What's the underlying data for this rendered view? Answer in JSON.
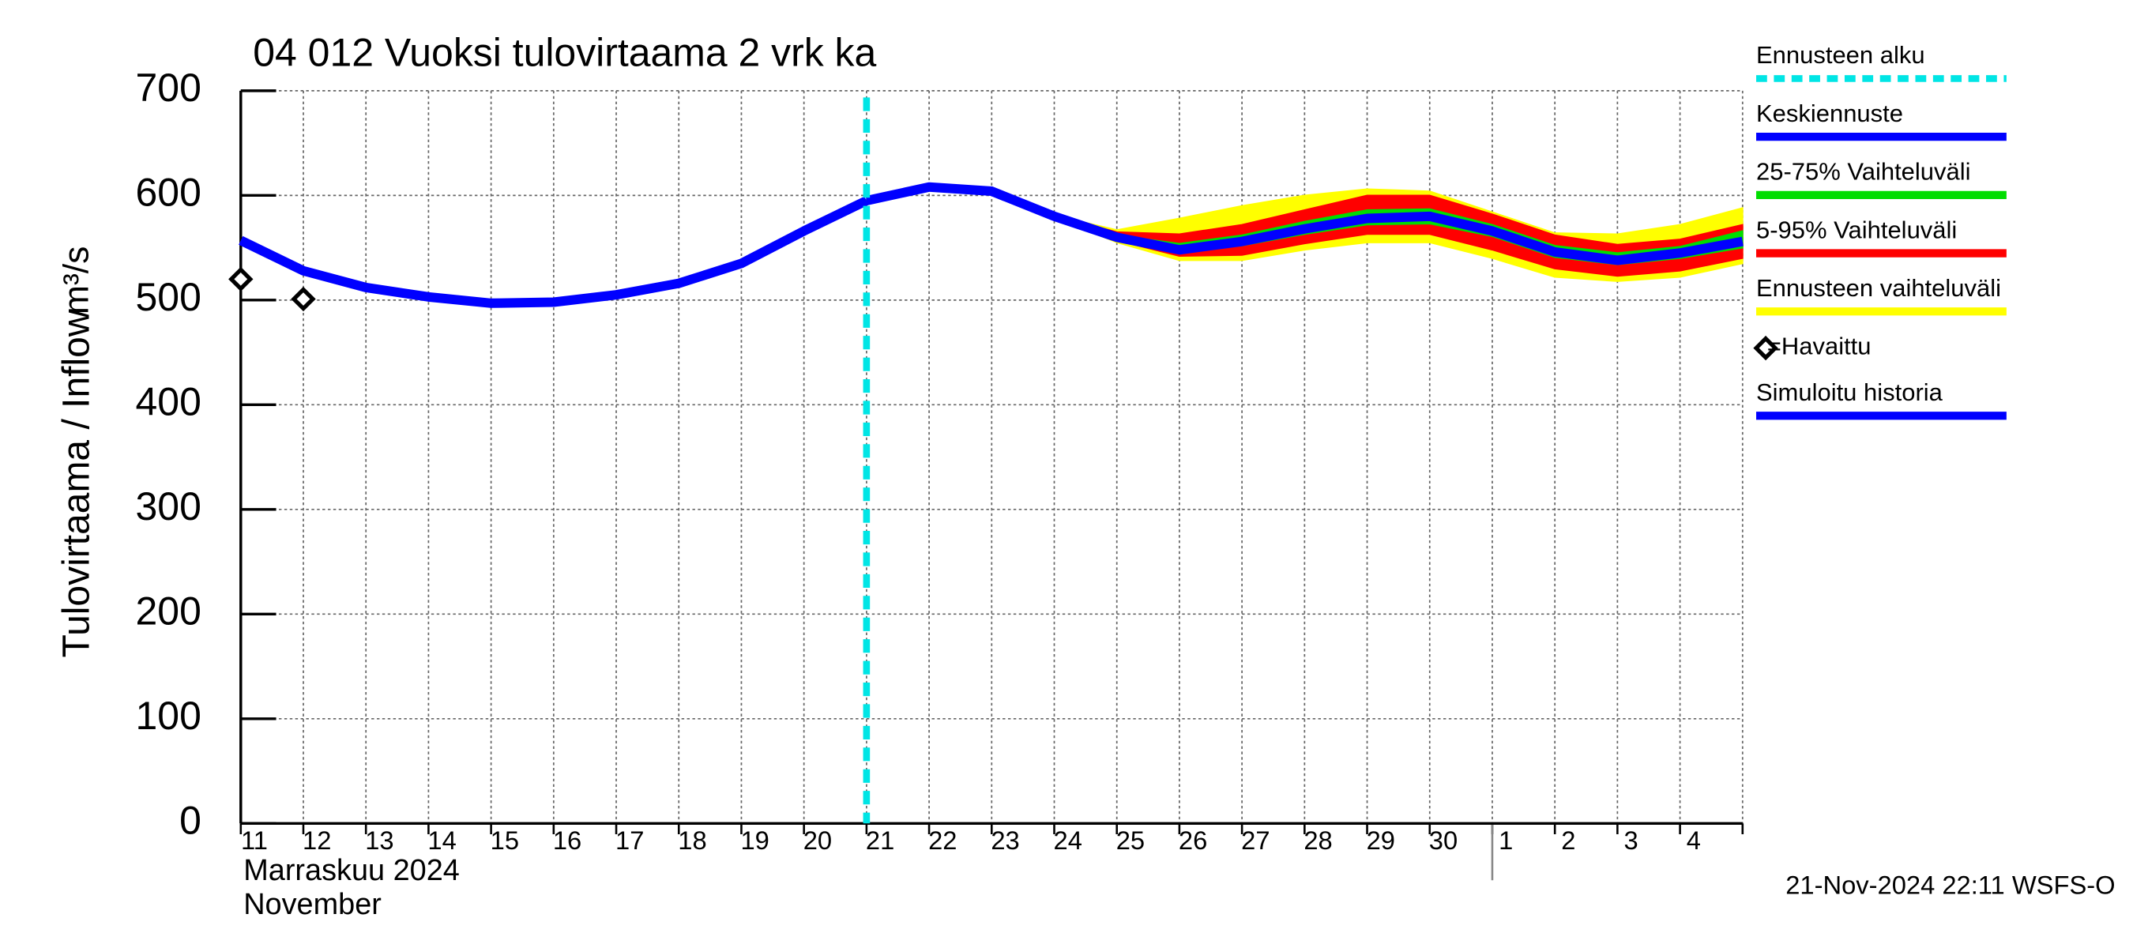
{
  "chart_data": {
    "type": "line",
    "title": "04 012 Vuoksi tulovirtaama 2 vrk ka",
    "y_label": "Tulovirtaama / Inflow",
    "y_unit": "m³/s",
    "x_label_lines": [
      "Marraskuu 2024",
      "November"
    ],
    "timestamp": "21-Nov-2024 22:11 WSFS-O",
    "categories": [
      "11",
      "12",
      "13",
      "14",
      "15",
      "16",
      "17",
      "18",
      "19",
      "20",
      "21",
      "22",
      "23",
      "24",
      "25",
      "26",
      "27",
      "28",
      "29",
      "30",
      "1",
      "2",
      "3",
      "4",
      null
    ],
    "ylim": [
      0,
      700
    ],
    "yticks": [
      0,
      100,
      200,
      300,
      400,
      500,
      600,
      700
    ],
    "grid": true,
    "series": [
      {
        "name": "Ennusteen alku",
        "color": "#00e5e5",
        "kind": "forecast-start"
      },
      {
        "name": "Keskiennuste",
        "color": "#0000ff",
        "kind": "line",
        "values": [
          null,
          null,
          null,
          null,
          null,
          null,
          null,
          null,
          null,
          null,
          595,
          608,
          604,
          580,
          560,
          548,
          556,
          568,
          578,
          580,
          566,
          546,
          538,
          545,
          556
        ]
      },
      {
        "name": "25-75% Vaihteluväli",
        "color": "#00dd00",
        "kind": "band",
        "low": [
          null,
          null,
          null,
          null,
          null,
          null,
          null,
          null,
          null,
          null,
          null,
          null,
          null,
          null,
          559,
          546,
          552,
          563,
          572,
          573,
          561,
          541,
          534,
          540,
          550
        ],
        "high": [
          null,
          null,
          null,
          null,
          null,
          null,
          null,
          null,
          null,
          null,
          null,
          null,
          null,
          null,
          562,
          554,
          562,
          575,
          586,
          587,
          572,
          552,
          545,
          551,
          566
        ]
      },
      {
        "name": "5-95% Vaihteluväli",
        "color": "#ff0000",
        "kind": "band",
        "low": [
          null,
          null,
          null,
          null,
          null,
          null,
          null,
          null,
          null,
          null,
          null,
          null,
          null,
          579,
          557,
          542,
          543,
          554,
          563,
          563,
          548,
          530,
          523,
          528,
          540
        ],
        "high": [
          null,
          null,
          null,
          null,
          null,
          null,
          null,
          null,
          null,
          null,
          null,
          null,
          null,
          581,
          565,
          563,
          572,
          586,
          600,
          600,
          582,
          562,
          553,
          558,
          572
        ]
      },
      {
        "name": "Ennusteen vaihteluväli",
        "color": "#ffff00",
        "kind": "band",
        "low": [
          null,
          null,
          null,
          null,
          null,
          null,
          null,
          null,
          null,
          null,
          null,
          null,
          null,
          579,
          555,
          538,
          538,
          548,
          555,
          555,
          540,
          522,
          518,
          522,
          535
        ],
        "high": [
          null,
          null,
          null,
          null,
          null,
          null,
          null,
          null,
          null,
          null,
          null,
          null,
          null,
          581,
          567,
          578,
          590,
          600,
          606,
          604,
          584,
          564,
          563,
          572,
          588
        ]
      },
      {
        "name": "=Havaittu",
        "color": "#000000",
        "kind": "points",
        "values": [
          520,
          501,
          null,
          null,
          null,
          null,
          null,
          null,
          null,
          null,
          null,
          null,
          null,
          null,
          null,
          null,
          null,
          null,
          null,
          null,
          null,
          null,
          null,
          null,
          null
        ]
      },
      {
        "name": "Simuloitu historia",
        "color": "#0000ff",
        "kind": "line",
        "values": [
          557,
          528,
          512,
          503,
          497,
          498,
          505,
          516,
          535,
          566,
          595,
          null,
          null,
          null,
          null,
          null,
          null,
          null,
          null,
          null,
          null,
          null,
          null,
          null,
          null
        ]
      }
    ]
  }
}
